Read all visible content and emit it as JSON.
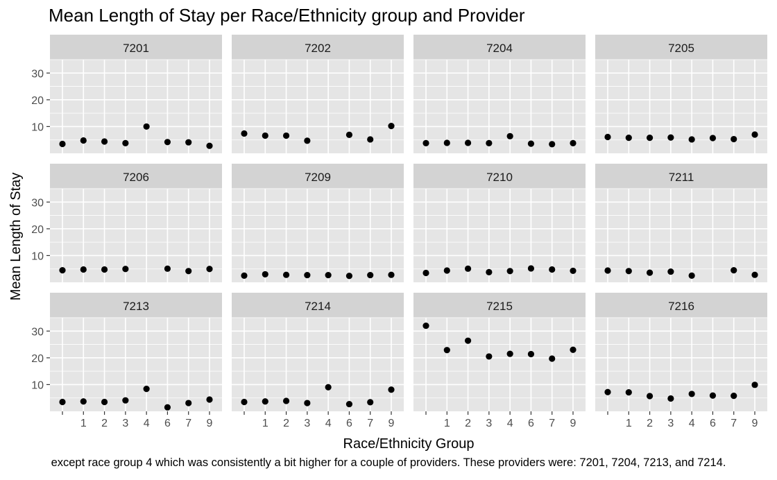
{
  "chart_data": {
    "type": "scatter",
    "title": "Mean Length of Stay per Race/Ethnicity group and Provider",
    "xlabel": "Race/Ethnicity Group",
    "ylabel": "Mean Length of Stay",
    "categories": [
      "",
      "1",
      "2",
      "3",
      "4",
      "6",
      "7",
      "9"
    ],
    "yticks": [
      10,
      20,
      30
    ],
    "ylim": [
      0,
      35
    ],
    "grid": true,
    "facet_columns": 4,
    "panels": [
      {
        "provider": "7201",
        "values": [
          3.5,
          4.8,
          4.4,
          3.8,
          10.0,
          4.2,
          4.1,
          2.8
        ]
      },
      {
        "provider": "7202",
        "values": [
          7.4,
          6.6,
          6.6,
          4.7,
          null,
          6.9,
          5.2,
          10.2
        ]
      },
      {
        "provider": "7204",
        "values": [
          3.8,
          3.9,
          3.9,
          3.8,
          6.4,
          3.6,
          3.4,
          3.8
        ]
      },
      {
        "provider": "7205",
        "values": [
          6.1,
          5.8,
          5.8,
          5.9,
          5.2,
          5.7,
          5.3,
          7.0
        ]
      },
      {
        "provider": "7206",
        "values": [
          4.5,
          4.8,
          4.8,
          5.0,
          null,
          5.1,
          4.2,
          5.0
        ]
      },
      {
        "provider": "7209",
        "values": [
          2.5,
          3.0,
          2.8,
          2.7,
          2.7,
          2.4,
          2.7,
          2.8
        ]
      },
      {
        "provider": "7210",
        "values": [
          3.5,
          4.4,
          5.1,
          3.8,
          4.2,
          5.2,
          4.8,
          4.3
        ]
      },
      {
        "provider": "7211",
        "values": [
          4.4,
          4.2,
          3.6,
          4.0,
          2.5,
          null,
          4.5,
          2.8
        ]
      },
      {
        "provider": "7213",
        "values": [
          3.5,
          3.7,
          3.5,
          4.1,
          8.4,
          1.5,
          3.1,
          4.4
        ]
      },
      {
        "provider": "7214",
        "values": [
          3.5,
          3.7,
          3.9,
          3.1,
          9.0,
          2.7,
          3.4,
          8.1
        ]
      },
      {
        "provider": "7215",
        "values": [
          32.0,
          22.9,
          26.4,
          20.5,
          21.5,
          21.4,
          19.7,
          23.0
        ]
      },
      {
        "provider": "7216",
        "values": [
          7.2,
          7.1,
          5.7,
          4.8,
          6.5,
          5.9,
          5.8,
          9.9
        ]
      }
    ]
  },
  "caption": "except race group 4 which was consistently a bit higher for a couple of providers. These providers were: 7201, 7204, 7213, and 7214.",
  "colors": {
    "panel_bg": "#e5e5e5",
    "strip_bg": "#d3d3d3",
    "grid": "#ffffff",
    "point": "#000000",
    "tick_text": "#4d4d4d",
    "text": "#000000"
  }
}
